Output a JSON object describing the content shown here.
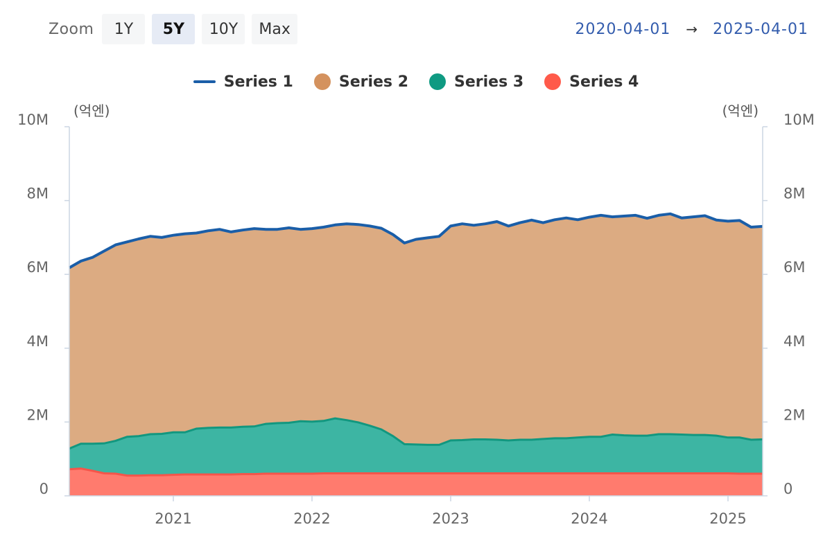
{
  "toolbar": {
    "zoom_label": "Zoom",
    "buttons": [
      {
        "label": "1Y",
        "active": false
      },
      {
        "label": "5Y",
        "active": true
      },
      {
        "label": "10Y",
        "active": false
      },
      {
        "label": "Max",
        "active": false
      }
    ]
  },
  "range": {
    "from": "2020-04-01",
    "arrow": "→",
    "to": "2025-04-01"
  },
  "chart_data": {
    "type": "area",
    "stacked": true,
    "unit_left": "(억엔)",
    "unit_right": "(억엔)",
    "yticks": [
      "0",
      "2M",
      "4M",
      "6M",
      "8M",
      "10M"
    ],
    "ylim": [
      0,
      10000000
    ],
    "xticks": [
      "2021",
      "2022",
      "2023",
      "2024",
      "2025"
    ],
    "xrange": [
      "2020-04",
      "2025-04"
    ],
    "x": [
      "2020-04",
      "2020-05",
      "2020-06",
      "2020-07",
      "2020-08",
      "2020-09",
      "2020-10",
      "2020-11",
      "2020-12",
      "2021-01",
      "2021-02",
      "2021-03",
      "2021-04",
      "2021-05",
      "2021-06",
      "2021-07",
      "2021-08",
      "2021-09",
      "2021-10",
      "2021-11",
      "2021-12",
      "2022-01",
      "2022-02",
      "2022-03",
      "2022-04",
      "2022-05",
      "2022-06",
      "2022-07",
      "2022-08",
      "2022-09",
      "2022-10",
      "2022-11",
      "2022-12",
      "2023-01",
      "2023-02",
      "2023-03",
      "2023-04",
      "2023-05",
      "2023-06",
      "2023-07",
      "2023-08",
      "2023-09",
      "2023-10",
      "2023-11",
      "2023-12",
      "2024-01",
      "2024-02",
      "2024-03",
      "2024-04",
      "2024-05",
      "2024-06",
      "2024-07",
      "2024-08",
      "2024-09",
      "2024-10",
      "2024-11",
      "2024-12",
      "2025-01",
      "2025-02",
      "2025-03",
      "2025-04"
    ],
    "series": [
      {
        "name": "Series 1",
        "kind": "line",
        "color": "#1a5ea8",
        "values": [
          6.18,
          6.36,
          6.46,
          6.63,
          6.8,
          6.88,
          6.96,
          7.03,
          7.0,
          7.06,
          7.1,
          7.12,
          7.18,
          7.22,
          7.15,
          7.2,
          7.24,
          7.22,
          7.22,
          7.26,
          7.22,
          7.24,
          7.28,
          7.34,
          7.37,
          7.35,
          7.31,
          7.25,
          7.08,
          6.85,
          6.95,
          6.99,
          7.03,
          7.31,
          7.37,
          7.33,
          7.37,
          7.43,
          7.31,
          7.4,
          7.47,
          7.4,
          7.48,
          7.53,
          7.48,
          7.55,
          7.6,
          7.56,
          7.58,
          7.6,
          7.52,
          7.6,
          7.64,
          7.53,
          7.56,
          7.59,
          7.47,
          7.44,
          7.46,
          7.28,
          7.3
        ]
      },
      {
        "name": "Series 2",
        "kind": "area",
        "color": "#dcab82",
        "values": [
          6.18,
          6.36,
          6.46,
          6.63,
          6.8,
          6.88,
          6.96,
          7.03,
          7.0,
          7.06,
          7.1,
          7.12,
          7.18,
          7.22,
          7.15,
          7.2,
          7.24,
          7.22,
          7.22,
          7.26,
          7.22,
          7.24,
          7.28,
          7.34,
          7.37,
          7.35,
          7.31,
          7.25,
          7.08,
          6.85,
          6.95,
          6.99,
          7.03,
          7.31,
          7.37,
          7.33,
          7.37,
          7.43,
          7.31,
          7.4,
          7.47,
          7.4,
          7.48,
          7.53,
          7.48,
          7.55,
          7.6,
          7.56,
          7.58,
          7.6,
          7.52,
          7.6,
          7.64,
          7.53,
          7.56,
          7.59,
          7.47,
          7.44,
          7.46,
          7.28,
          7.3
        ]
      },
      {
        "name": "Series 3",
        "kind": "area",
        "color": "#3db5a3",
        "stroke": "#12977f",
        "values": [
          1.28,
          1.41,
          1.41,
          1.42,
          1.49,
          1.6,
          1.62,
          1.67,
          1.68,
          1.72,
          1.72,
          1.82,
          1.84,
          1.85,
          1.85,
          1.87,
          1.88,
          1.95,
          1.97,
          1.98,
          2.02,
          2.01,
          2.03,
          2.1,
          2.05,
          1.99,
          1.9,
          1.8,
          1.62,
          1.4,
          1.39,
          1.38,
          1.38,
          1.5,
          1.51,
          1.53,
          1.53,
          1.52,
          1.5,
          1.52,
          1.52,
          1.54,
          1.56,
          1.56,
          1.58,
          1.6,
          1.6,
          1.66,
          1.64,
          1.63,
          1.63,
          1.67,
          1.67,
          1.66,
          1.65,
          1.65,
          1.63,
          1.58,
          1.58,
          1.52,
          1.53
        ]
      },
      {
        "name": "Series 4",
        "kind": "area",
        "color": "#ff7b6e",
        "stroke": "#f5554a",
        "values": [
          0.72,
          0.74,
          0.68,
          0.61,
          0.6,
          0.55,
          0.55,
          0.56,
          0.56,
          0.57,
          0.58,
          0.58,
          0.58,
          0.58,
          0.58,
          0.59,
          0.59,
          0.6,
          0.6,
          0.6,
          0.6,
          0.6,
          0.61,
          0.61,
          0.61,
          0.61,
          0.61,
          0.61,
          0.61,
          0.61,
          0.61,
          0.61,
          0.61,
          0.61,
          0.61,
          0.61,
          0.61,
          0.61,
          0.61,
          0.61,
          0.61,
          0.61,
          0.61,
          0.61,
          0.61,
          0.61,
          0.61,
          0.61,
          0.61,
          0.61,
          0.61,
          0.61,
          0.61,
          0.61,
          0.61,
          0.61,
          0.61,
          0.61,
          0.6,
          0.6,
          0.6
        ]
      }
    ],
    "values_scale": "millions",
    "legend_position": "top-center",
    "grid": false
  }
}
